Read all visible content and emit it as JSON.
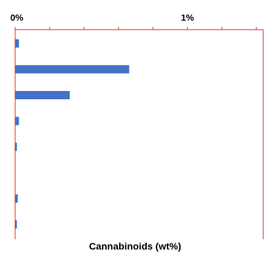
{
  "chart_data": {
    "type": "bar",
    "orientation": "horizontal",
    "x_axis_position": "top",
    "xlim": [
      0,
      1.4
    ],
    "x_tick_labels": [
      {
        "value": 0,
        "text": "0%"
      },
      {
        "value": 1,
        "text": "1%"
      }
    ],
    "x_minor_ticks": [
      0.2,
      0.4,
      0.6,
      0.8,
      1.2,
      1.4
    ],
    "xlabel": "Cannabinoids (wt%)",
    "ylabel": "",
    "title": "",
    "grid": false,
    "legend": "none",
    "bar_color": "#4472c4",
    "axis_color": "#e0201b",
    "categories": [
      "",
      "",
      "",
      "",
      "",
      "",
      "",
      ""
    ],
    "values": [
      0.02,
      0.66,
      0.315,
      0.02,
      0.008,
      0,
      0.013,
      0.008
    ]
  }
}
